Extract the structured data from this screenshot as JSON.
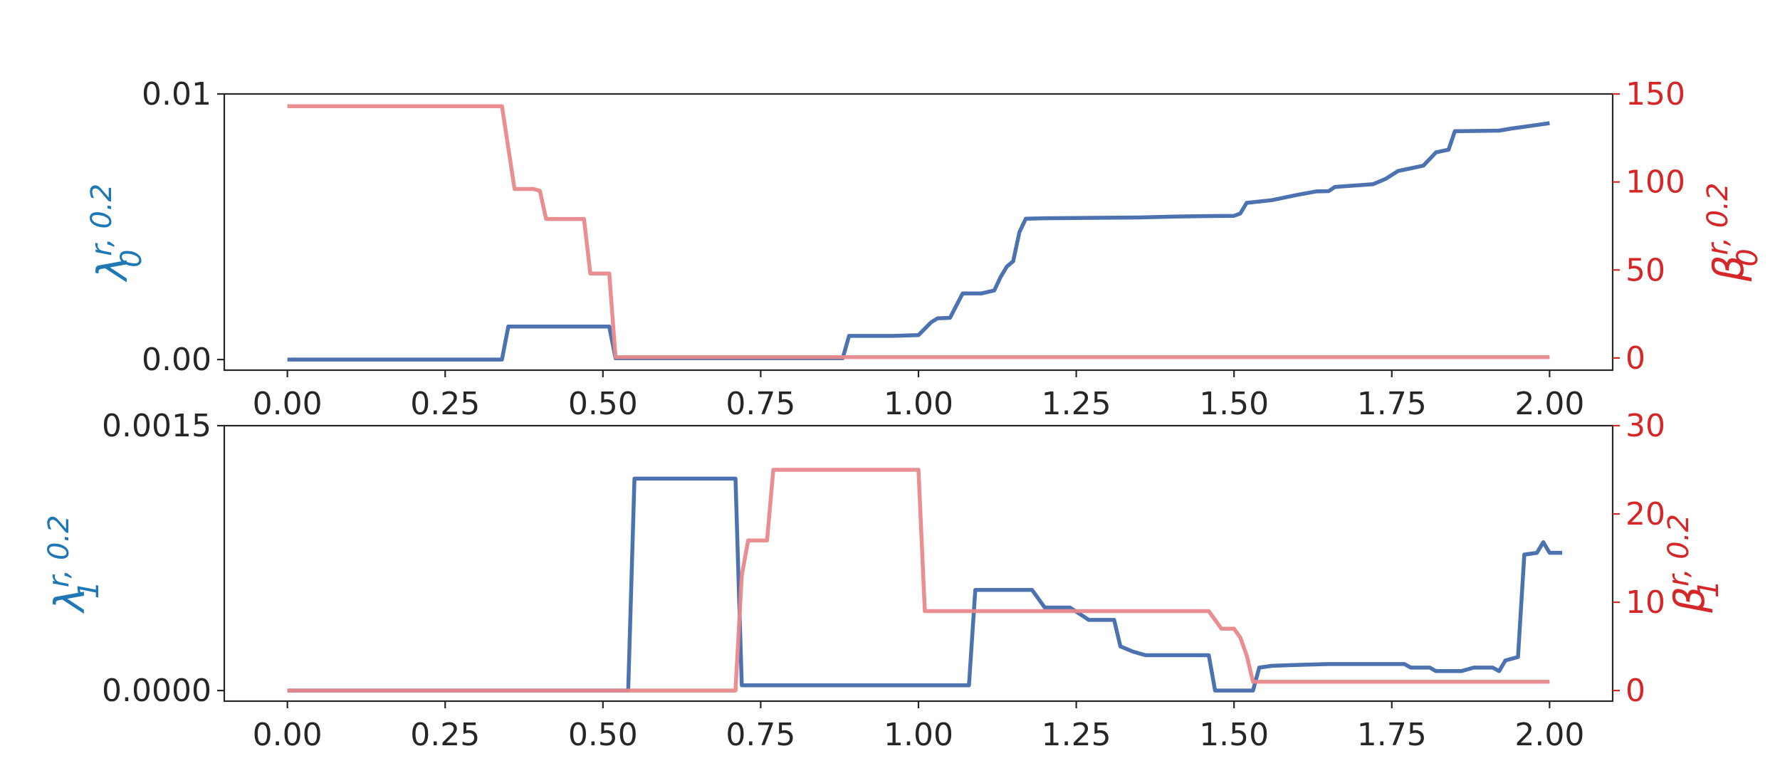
{
  "colors": {
    "lambda_series": "#4c72b0",
    "beta_series": "#e8888b",
    "left_label": "#1f77b4",
    "right_axis": "#d62728",
    "axes": "#262626"
  },
  "chart_data": [
    {
      "type": "line",
      "xlim": [
        -0.1,
        2.1
      ],
      "x_ticks": [
        0.0,
        0.25,
        0.5,
        0.75,
        1.0,
        1.25,
        1.5,
        1.75,
        2.0
      ],
      "x_tick_labels": [
        "0.00",
        "0.25",
        "0.50",
        "0.75",
        "1.00",
        "1.25",
        "1.50",
        "1.75",
        "2.00"
      ],
      "left_axis": {
        "label_base": "λ",
        "label_sub": "0",
        "label_sup": "r, 0.2",
        "lim": [
          -0.0004,
          0.01
        ],
        "ticks": [
          0.0,
          0.01
        ],
        "tick_labels": [
          "0.00",
          "0.01"
        ]
      },
      "right_axis": {
        "label_base": "β",
        "label_sub": "0",
        "label_sup": "r, 0.2",
        "lim": [
          -6.9,
          150
        ],
        "ticks": [
          0,
          50,
          100,
          150
        ],
        "tick_labels": [
          "0",
          "50",
          "100",
          "150"
        ]
      },
      "series": [
        {
          "axis": "left",
          "color": "#4c72b0",
          "points": [
            [
              0.0,
              0.0
            ],
            [
              0.34,
              0.0
            ],
            [
              0.35,
              0.00124
            ],
            [
              0.51,
              0.00124
            ],
            [
              0.52,
              5e-05
            ],
            [
              0.88,
              5e-05
            ],
            [
              0.89,
              0.00089
            ],
            [
              0.96,
              0.00089
            ],
            [
              1.0,
              0.00092
            ],
            [
              1.02,
              0.0014
            ],
            [
              1.03,
              0.00155
            ],
            [
              1.05,
              0.00157
            ],
            [
              1.07,
              0.00249
            ],
            [
              1.1,
              0.00249
            ],
            [
              1.12,
              0.0026
            ],
            [
              1.13,
              0.0031
            ],
            [
              1.14,
              0.0035
            ],
            [
              1.15,
              0.0037
            ],
            [
              1.16,
              0.0048
            ],
            [
              1.17,
              0.0053
            ],
            [
              1.2,
              0.00532
            ],
            [
              1.25,
              0.00533
            ],
            [
              1.35,
              0.00535
            ],
            [
              1.4,
              0.00538
            ],
            [
              1.45,
              0.0054
            ],
            [
              1.5,
              0.00541
            ],
            [
              1.51,
              0.0055
            ],
            [
              1.52,
              0.0059
            ],
            [
              1.56,
              0.006
            ],
            [
              1.6,
              0.0062
            ],
            [
              1.63,
              0.00633
            ],
            [
              1.65,
              0.00634
            ],
            [
              1.66,
              0.0065
            ],
            [
              1.72,
              0.0066
            ],
            [
              1.74,
              0.0068
            ],
            [
              1.76,
              0.0071
            ],
            [
              1.78,
              0.0072
            ],
            [
              1.8,
              0.0073
            ],
            [
              1.82,
              0.0078
            ],
            [
              1.84,
              0.0079
            ],
            [
              1.85,
              0.0086
            ],
            [
              1.86,
              0.0086
            ],
            [
              1.92,
              0.00862
            ],
            [
              1.94,
              0.0087
            ],
            [
              1.97,
              0.0088
            ],
            [
              2.0,
              0.0089
            ]
          ]
        },
        {
          "axis": "right",
          "color": "#e8888b",
          "points": [
            [
              0.0,
              143
            ],
            [
              0.34,
              143
            ],
            [
              0.36,
              96
            ],
            [
              0.39,
              96
            ],
            [
              0.4,
              95
            ],
            [
              0.41,
              79
            ],
            [
              0.47,
              79
            ],
            [
              0.48,
              48
            ],
            [
              0.51,
              48
            ],
            [
              0.52,
              0.5
            ],
            [
              2.0,
              0.5
            ]
          ]
        }
      ]
    },
    {
      "type": "line",
      "xlim": [
        -0.1,
        2.1
      ],
      "x_ticks": [
        0.0,
        0.25,
        0.5,
        0.75,
        1.0,
        1.25,
        1.5,
        1.75,
        2.0
      ],
      "x_tick_labels": [
        "0.00",
        "0.25",
        "0.50",
        "0.75",
        "1.00",
        "1.25",
        "1.50",
        "1.75",
        "2.00"
      ],
      "left_axis": {
        "label_base": "λ",
        "label_sub": "1",
        "label_sup": "r, 0.2",
        "lim": [
          -6e-05,
          0.0015
        ],
        "ticks": [
          0.0,
          0.0015
        ],
        "tick_labels": [
          "0.0000",
          "0.0015"
        ]
      },
      "right_axis": {
        "label_base": "β",
        "label_sub": "1",
        "label_sup": "r, 0.2",
        "lim": [
          -1.2,
          30
        ],
        "ticks": [
          0,
          10,
          20,
          30
        ],
        "tick_labels": [
          "0",
          "10",
          "20",
          "30"
        ]
      },
      "series": [
        {
          "axis": "left",
          "color": "#4c72b0",
          "points": [
            [
              0.0,
              0.0
            ],
            [
              0.54,
              0.0
            ],
            [
              0.55,
              0.0012
            ],
            [
              0.71,
              0.0012
            ],
            [
              0.72,
              3e-05
            ],
            [
              1.08,
              3e-05
            ],
            [
              1.09,
              0.00057
            ],
            [
              1.18,
              0.00057
            ],
            [
              1.2,
              0.00047
            ],
            [
              1.24,
              0.00047
            ],
            [
              1.27,
              0.0004
            ],
            [
              1.31,
              0.0004
            ],
            [
              1.32,
              0.00025
            ],
            [
              1.34,
              0.00022
            ],
            [
              1.36,
              0.0002
            ],
            [
              1.46,
              0.0002
            ],
            [
              1.47,
              0.0
            ],
            [
              1.53,
              0.0
            ],
            [
              1.54,
              0.00013
            ],
            [
              1.56,
              0.00014
            ],
            [
              1.6,
              0.000145
            ],
            [
              1.65,
              0.00015
            ],
            [
              1.77,
              0.00015
            ],
            [
              1.78,
              0.00013
            ],
            [
              1.81,
              0.00013
            ],
            [
              1.82,
              0.00011
            ],
            [
              1.86,
              0.00011
            ],
            [
              1.88,
              0.00013
            ],
            [
              1.91,
              0.00013
            ],
            [
              1.92,
              0.00011
            ],
            [
              1.93,
              0.00017
            ],
            [
              1.95,
              0.00019
            ],
            [
              1.96,
              0.00077
            ],
            [
              1.98,
              0.00078
            ],
            [
              1.99,
              0.00084
            ],
            [
              2.0,
              0.00078
            ],
            [
              2.02,
              0.00078
            ]
          ]
        },
        {
          "axis": "right",
          "color": "#e8888b",
          "points": [
            [
              0.0,
              0.0
            ],
            [
              0.71,
              0.0
            ],
            [
              0.72,
              13
            ],
            [
              0.73,
              17
            ],
            [
              0.76,
              17
            ],
            [
              0.77,
              25
            ],
            [
              1.0,
              25
            ],
            [
              1.01,
              9
            ],
            [
              1.46,
              9
            ],
            [
              1.48,
              7
            ],
            [
              1.5,
              7
            ],
            [
              1.51,
              6
            ],
            [
              1.52,
              4
            ],
            [
              1.53,
              1
            ],
            [
              2.0,
              1
            ]
          ]
        }
      ]
    }
  ]
}
